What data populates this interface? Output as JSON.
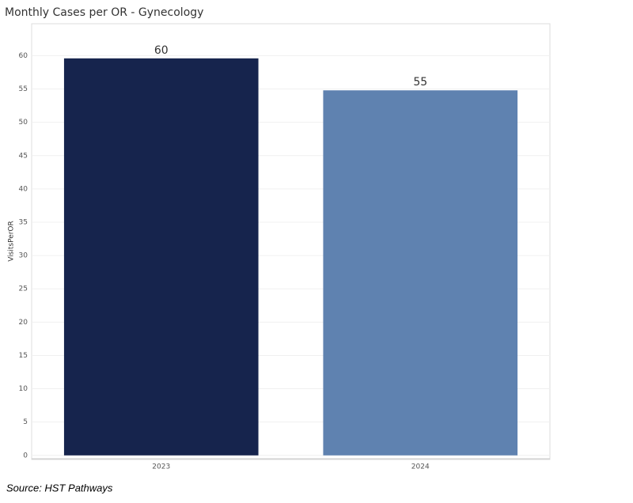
{
  "chart_data": {
    "type": "bar",
    "title": "Monthly Cases per OR - Gynecology",
    "y_label": "VisitsPerOR",
    "categories": [
      "2023",
      "2024"
    ],
    "values": [
      59.6,
      54.8
    ],
    "value_labels": [
      "60",
      "55"
    ],
    "colors": [
      "#16244d",
      "#5f82b0"
    ],
    "ylim": [
      -0.5,
      64.8
    ],
    "yticks": [
      0,
      5,
      10,
      15,
      20,
      25,
      30,
      35,
      40,
      45,
      50,
      55,
      60
    ],
    "grid": true
  },
  "source": "Source: HST Pathways"
}
